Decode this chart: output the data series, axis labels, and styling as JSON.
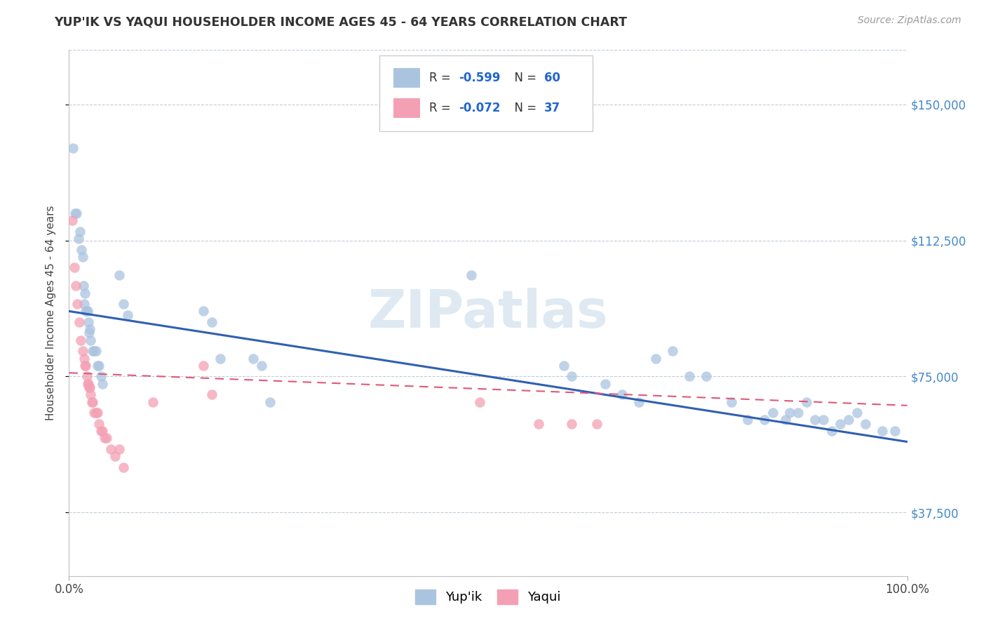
{
  "title": "YUP'IK VS YAQUI HOUSEHOLDER INCOME AGES 45 - 64 YEARS CORRELATION CHART",
  "source": "Source: ZipAtlas.com",
  "ylabel": "Householder Income Ages 45 - 64 years",
  "xlim": [
    0.0,
    1.0
  ],
  "ylim": [
    20000,
    165000
  ],
  "ytick_values": [
    37500,
    75000,
    112500,
    150000
  ],
  "ytick_labels": [
    "$37,500",
    "$75,000",
    "$112,500",
    "$150,000"
  ],
  "color_blue": "#aac4e0",
  "color_pink": "#f4a0b4",
  "line_blue": "#3060b0",
  "line_pink": "#e05878",
  "watermark": "ZIPatlas",
  "yupik_x": [
    0.005,
    0.007,
    0.009,
    0.011,
    0.013,
    0.015,
    0.016,
    0.017,
    0.018,
    0.019,
    0.02,
    0.021,
    0.022,
    0.023,
    0.024,
    0.025,
    0.026,
    0.028,
    0.03,
    0.032,
    0.034,
    0.036,
    0.038,
    0.04,
    0.06,
    0.065,
    0.07,
    0.16,
    0.17,
    0.18,
    0.22,
    0.23,
    0.24,
    0.48,
    0.59,
    0.6,
    0.64,
    0.66,
    0.68,
    0.7,
    0.72,
    0.74,
    0.76,
    0.79,
    0.81,
    0.83,
    0.84,
    0.855,
    0.86,
    0.87,
    0.88,
    0.89,
    0.9,
    0.91,
    0.92,
    0.93,
    0.94,
    0.95,
    0.97,
    0.985
  ],
  "yupik_y": [
    138000,
    120000,
    120000,
    113000,
    115000,
    110000,
    108000,
    100000,
    95000,
    98000,
    93000,
    93000,
    93000,
    90000,
    87000,
    88000,
    85000,
    82000,
    82000,
    82000,
    78000,
    78000,
    75000,
    73000,
    103000,
    95000,
    92000,
    93000,
    90000,
    80000,
    80000,
    78000,
    68000,
    103000,
    78000,
    75000,
    73000,
    70000,
    68000,
    80000,
    82000,
    75000,
    75000,
    68000,
    63000,
    63000,
    65000,
    63000,
    65000,
    65000,
    68000,
    63000,
    63000,
    60000,
    62000,
    63000,
    65000,
    62000,
    60000,
    60000
  ],
  "yaqui_x": [
    0.004,
    0.006,
    0.008,
    0.01,
    0.012,
    0.014,
    0.016,
    0.018,
    0.019,
    0.02,
    0.021,
    0.022,
    0.023,
    0.024,
    0.025,
    0.026,
    0.027,
    0.028,
    0.03,
    0.032,
    0.034,
    0.036,
    0.038,
    0.04,
    0.042,
    0.045,
    0.05,
    0.055,
    0.06,
    0.065,
    0.1,
    0.16,
    0.17,
    0.49,
    0.56,
    0.6,
    0.63
  ],
  "yaqui_y": [
    118000,
    105000,
    100000,
    95000,
    90000,
    85000,
    82000,
    80000,
    78000,
    78000,
    75000,
    73000,
    73000,
    72000,
    72000,
    70000,
    68000,
    68000,
    65000,
    65000,
    65000,
    62000,
    60000,
    60000,
    58000,
    58000,
    55000,
    53000,
    55000,
    50000,
    68000,
    78000,
    70000,
    68000,
    62000,
    62000,
    62000
  ]
}
